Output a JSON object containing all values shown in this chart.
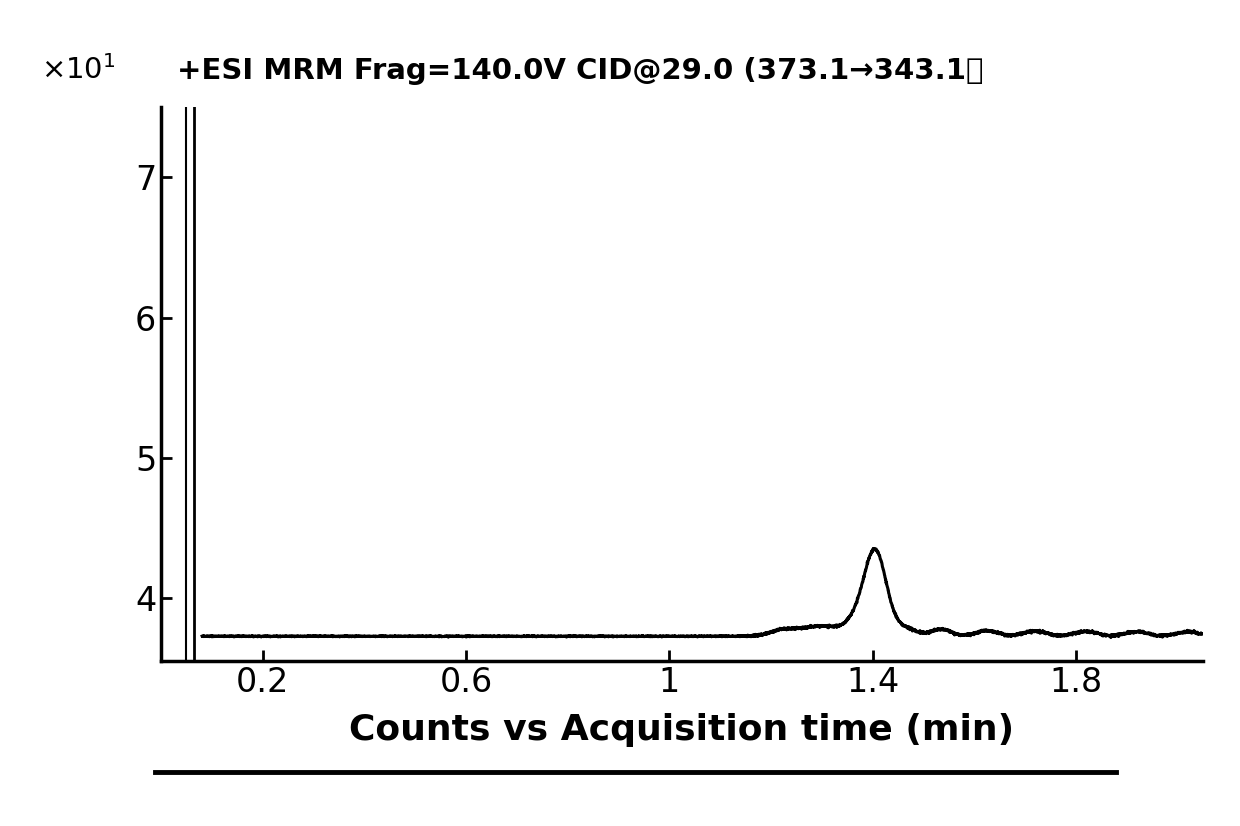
{
  "title_plain": "+ESI MRM Frag=140.0V CID@29.0 (373.1→343.1）",
  "xlabel": "Counts vs Acquisition time (min)",
  "xlim": [
    0.0,
    2.05
  ],
  "ylim": [
    3.55,
    7.5
  ],
  "xticks": [
    0.2,
    0.6,
    1.0,
    1.4,
    1.8
  ],
  "yticks": [
    4,
    5,
    6,
    7
  ],
  "baseline": 3.725,
  "peak_x": 1.405,
  "peak_y_top": 4.33,
  "line_color": "#000000",
  "background_color": "#ffffff",
  "title_fontsize": 21,
  "xlabel_fontsize": 26,
  "tick_fontsize": 24,
  "line_width": 2.2
}
